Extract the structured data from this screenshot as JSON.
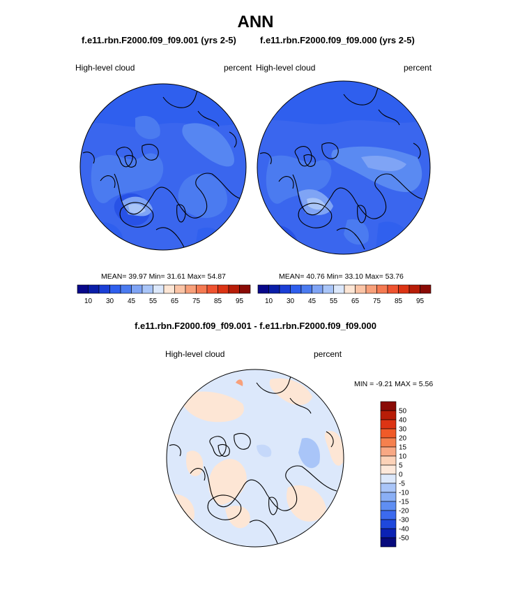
{
  "title": "ANN",
  "panels": [
    {
      "case": "f.e11.rbn.F2000.f09_f09.001 (yrs 2-5)",
      "variable": "High-level cloud",
      "units": "percent",
      "stats": "MEAN=  39.97  Min=  31.61  Max=  54.87"
    },
    {
      "case": "f.e11.rbn.F2000.f09_f09.000 (yrs 2-5)",
      "variable": "High-level cloud",
      "units": "percent",
      "stats": "MEAN=  40.76  Min=  33.10  Max=  53.76"
    }
  ],
  "diff": {
    "title": "f.e11.rbn.F2000.f09_f09.001 - f.e11.rbn.F2000.f09_f09.000",
    "variable": "High-level cloud",
    "units": "percent",
    "minmax": "MIN =  -9.21 MAX =   5.56"
  },
  "colorbar_abs": {
    "colors": [
      "#08088a",
      "#0a1ea8",
      "#1b3fd6",
      "#2f5fee",
      "#4b7bf0",
      "#7fa4f5",
      "#a9c5f8",
      "#dce8fb",
      "#fde6d5",
      "#fbc4a6",
      "#f8a07a",
      "#f57a52",
      "#ef5330",
      "#dc3414",
      "#b81d08",
      "#8a0b06"
    ],
    "labels": [
      "10",
      "30",
      "45",
      "55",
      "65",
      "75",
      "85",
      "95"
    ]
  },
  "colorbar_diff": {
    "colors": [
      "#8a0b06",
      "#b81d08",
      "#dc3414",
      "#f05a28",
      "#f5804e",
      "#f8a884",
      "#fcd2b8",
      "#fde8da",
      "#dce8fb",
      "#a9c5f8",
      "#8aaff5",
      "#5f8ef2",
      "#3c6aee",
      "#1e48dc",
      "#0b22b4",
      "#070a7c"
    ],
    "labels": [
      "50",
      "40",
      "30",
      "20",
      "15",
      "10",
      "5",
      "0",
      "-5",
      "-10",
      "-15",
      "-20",
      "-30",
      "-40",
      "-50"
    ]
  }
}
